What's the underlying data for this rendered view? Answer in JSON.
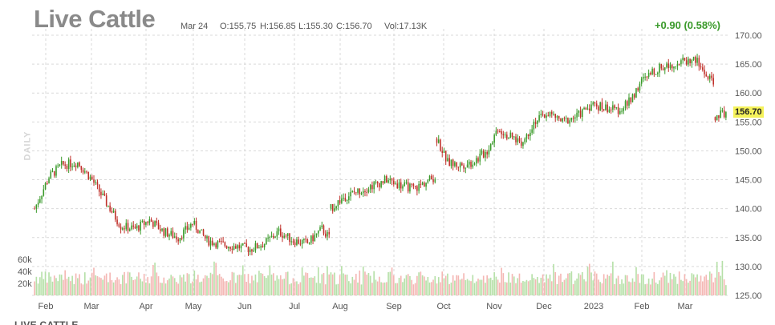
{
  "header": {
    "title": "Live Cattle",
    "date": "Mar 24",
    "open": "O:155.75",
    "high": "H:156.85",
    "low": "L:155.30",
    "close": "C:156.70",
    "volume": "Vol:17.13K",
    "change": "+0.90 (0.58%)",
    "period": "DAILY",
    "bottom_label": "LIVE CATTLE"
  },
  "price_tag": "156.70",
  "colors": {
    "up": "#3a9a2a",
    "down": "#c0302a",
    "vol_up": "#b6e0a8",
    "vol_down": "#f4b7b4",
    "grid": "#d9d9d9",
    "tag": "#f5f25a"
  },
  "chart_data": {
    "type": "candlestick",
    "title": "Live Cattle",
    "xlabel": "",
    "ylabel": "",
    "y_ticks": [
      125,
      130,
      135,
      140,
      145,
      150,
      155,
      160,
      165,
      170
    ],
    "y_tick_labels": [
      "125.00",
      "130.00",
      "135.00",
      "140.00",
      "145.00",
      "150.00",
      "155.00",
      "160.00",
      "165.00",
      "170.00"
    ],
    "ylim": [
      125,
      170
    ],
    "volume_ticks": [
      20000,
      40000,
      60000
    ],
    "volume_tick_labels": [
      "20k",
      "40k",
      "60k"
    ],
    "months": [
      "Feb",
      "Mar",
      "Apr",
      "May",
      "Jun",
      "Jul",
      "Aug",
      "Sep",
      "Oct",
      "Nov",
      "Dec",
      "2023",
      "Feb",
      "Mar"
    ],
    "grid": true,
    "anchors": [
      {
        "i": 0,
        "v": 140
      },
      {
        "i": 8,
        "v": 145.5
      },
      {
        "i": 15,
        "v": 147.5
      },
      {
        "i": 24,
        "v": 148
      },
      {
        "i": 32,
        "v": 145
      },
      {
        "i": 40,
        "v": 141
      },
      {
        "i": 48,
        "v": 137
      },
      {
        "i": 56,
        "v": 136.5
      },
      {
        "i": 64,
        "v": 138
      },
      {
        "i": 72,
        "v": 136
      },
      {
        "i": 80,
        "v": 135
      },
      {
        "i": 88,
        "v": 137.5
      },
      {
        "i": 96,
        "v": 134.5
      },
      {
        "i": 104,
        "v": 133.8
      },
      {
        "i": 112,
        "v": 133.5
      },
      {
        "i": 120,
        "v": 133
      },
      {
        "i": 128,
        "v": 134
      },
      {
        "i": 136,
        "v": 136
      },
      {
        "i": 144,
        "v": 134.5
      },
      {
        "i": 152,
        "v": 134
      },
      {
        "i": 160,
        "v": 136.5
      },
      {
        "i": 164,
        "v": 135
      },
      {
        "i": 165,
        "v": 140
      },
      {
        "i": 172,
        "v": 142
      },
      {
        "i": 180,
        "v": 143
      },
      {
        "i": 188,
        "v": 144
      },
      {
        "i": 196,
        "v": 145
      },
      {
        "i": 204,
        "v": 144
      },
      {
        "i": 212,
        "v": 143.5
      },
      {
        "i": 220,
        "v": 145
      },
      {
        "i": 223,
        "v": 145.5
      },
      {
        "i": 224,
        "v": 152
      },
      {
        "i": 230,
        "v": 148
      },
      {
        "i": 236,
        "v": 147.5
      },
      {
        "i": 244,
        "v": 148
      },
      {
        "i": 252,
        "v": 150
      },
      {
        "i": 258,
        "v": 154
      },
      {
        "i": 264,
        "v": 152.5
      },
      {
        "i": 272,
        "v": 151.5
      },
      {
        "i": 278,
        "v": 155
      },
      {
        "i": 286,
        "v": 156.5
      },
      {
        "i": 294,
        "v": 155
      },
      {
        "i": 302,
        "v": 156
      },
      {
        "i": 310,
        "v": 158
      },
      {
        "i": 318,
        "v": 157.5
      },
      {
        "i": 324,
        "v": 157
      },
      {
        "i": 330,
        "v": 158
      },
      {
        "i": 338,
        "v": 162
      },
      {
        "i": 346,
        "v": 164
      },
      {
        "i": 354,
        "v": 165
      },
      {
        "i": 362,
        "v": 165.5
      },
      {
        "i": 368,
        "v": 165.8
      },
      {
        "i": 374,
        "v": 163
      },
      {
        "i": 378,
        "v": 161.5
      },
      {
        "i": 379,
        "v": 156
      },
      {
        "i": 385,
        "v": 156.7
      }
    ],
    "bars": 386,
    "last": {
      "date": "Mar 24",
      "open": 155.75,
      "high": 156.85,
      "low": 155.3,
      "close": 156.7,
      "volume": 17130
    }
  }
}
